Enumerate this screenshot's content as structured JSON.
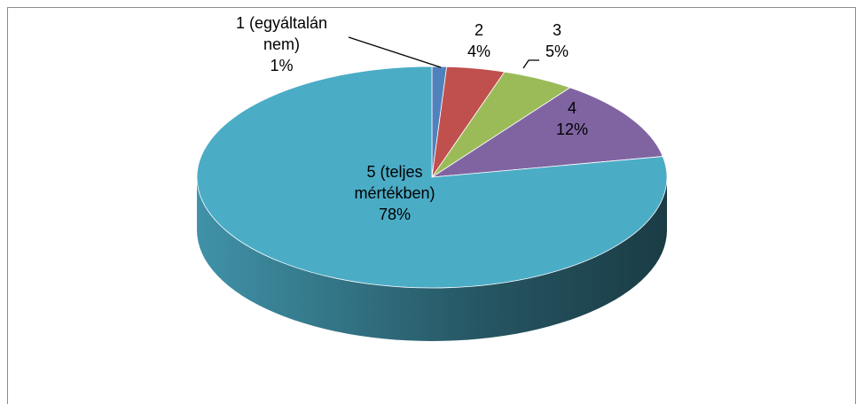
{
  "chart_data": {
    "type": "pie",
    "categories": [
      "1 (egyáltalán nem)",
      "2",
      "3",
      "4",
      "5 (teljes mértékben)"
    ],
    "values": [
      1,
      4,
      5,
      12,
      78
    ],
    "value_labels": [
      "1%",
      "4%",
      "5%",
      "12%",
      "78%"
    ],
    "colors": [
      "#4f81bd",
      "#c0504d",
      "#9bbb59",
      "#8064a2",
      "#4bacc6"
    ]
  }
}
